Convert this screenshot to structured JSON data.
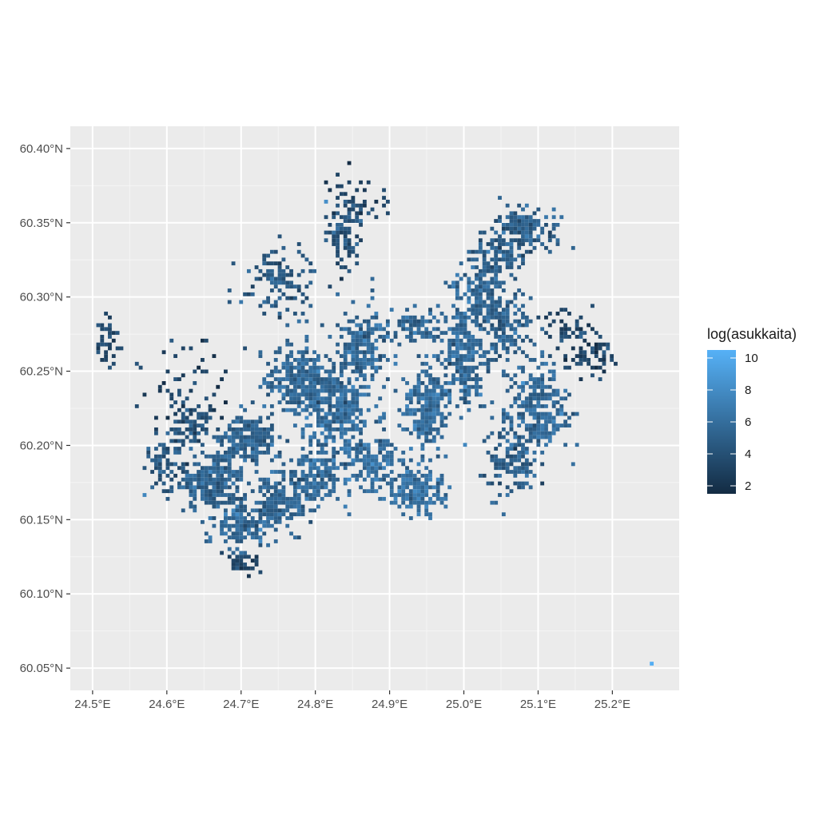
{
  "chart_data": {
    "type": "heatmap",
    "title": "",
    "xlabel": "",
    "ylabel": "",
    "xlim": [
      24.47,
      25.29
    ],
    "ylim": [
      60.035,
      60.415
    ],
    "x_ticks": [
      {
        "value": 24.5,
        "label": "24.5°E"
      },
      {
        "value": 24.6,
        "label": "24.6°E"
      },
      {
        "value": 24.7,
        "label": "24.7°E"
      },
      {
        "value": 24.8,
        "label": "24.8°E"
      },
      {
        "value": 24.9,
        "label": "24.9°E"
      },
      {
        "value": 25.0,
        "label": "25.0°E"
      },
      {
        "value": 25.1,
        "label": "25.1°E"
      },
      {
        "value": 25.2,
        "label": "25.2°E"
      }
    ],
    "y_ticks": [
      {
        "value": 60.05,
        "label": "60.05°N"
      },
      {
        "value": 60.1,
        "label": "60.10°N"
      },
      {
        "value": 60.15,
        "label": "60.15°N"
      },
      {
        "value": 60.2,
        "label": "60.20°N"
      },
      {
        "value": 60.25,
        "label": "60.25°N"
      },
      {
        "value": 60.3,
        "label": "60.30°N"
      },
      {
        "value": 60.35,
        "label": "60.35°N"
      },
      {
        "value": 60.4,
        "label": "60.40°N"
      }
    ],
    "grid": true,
    "legend": {
      "title": "log(asukkaita)",
      "position": "right",
      "range": [
        1.5,
        10.5
      ],
      "breaks": [
        2,
        4,
        6,
        8,
        10
      ],
      "low_color": "#132b43",
      "high_color": "#56b1f7"
    },
    "cell_size_deg": [
      0.0052,
      0.0026
    ],
    "clusters": [
      {
        "lon": 24.66,
        "lat": 60.175,
        "spread_lon": 0.035,
        "spread_lat": 0.014,
        "n": 260,
        "mean": 5.3
      },
      {
        "lon": 24.7,
        "lat": 60.145,
        "spread_lon": 0.03,
        "spread_lat": 0.012,
        "n": 140,
        "mean": 5.6
      },
      {
        "lon": 24.705,
        "lat": 60.122,
        "spread_lon": 0.018,
        "spread_lat": 0.006,
        "n": 45,
        "mean": 3.2
      },
      {
        "lon": 24.745,
        "lat": 60.16,
        "spread_lon": 0.03,
        "spread_lat": 0.018,
        "n": 180,
        "mean": 5.4
      },
      {
        "lon": 24.71,
        "lat": 60.205,
        "spread_lon": 0.04,
        "spread_lat": 0.014,
        "n": 200,
        "mean": 5.2
      },
      {
        "lon": 24.63,
        "lat": 60.215,
        "spread_lon": 0.025,
        "spread_lat": 0.01,
        "n": 70,
        "mean": 4.2
      },
      {
        "lon": 24.6,
        "lat": 60.185,
        "spread_lon": 0.025,
        "spread_lat": 0.015,
        "n": 80,
        "mean": 4.4
      },
      {
        "lon": 24.78,
        "lat": 60.245,
        "spread_lon": 0.04,
        "spread_lat": 0.018,
        "n": 300,
        "mean": 5.6
      },
      {
        "lon": 24.83,
        "lat": 60.22,
        "spread_lon": 0.04,
        "spread_lat": 0.025,
        "n": 300,
        "mean": 5.8
      },
      {
        "lon": 24.86,
        "lat": 60.265,
        "spread_lon": 0.03,
        "spread_lat": 0.02,
        "n": 200,
        "mean": 5.6
      },
      {
        "lon": 24.8,
        "lat": 60.18,
        "spread_lon": 0.03,
        "spread_lat": 0.015,
        "n": 160,
        "mean": 5.7
      },
      {
        "lon": 24.88,
        "lat": 60.185,
        "spread_lon": 0.03,
        "spread_lat": 0.015,
        "n": 150,
        "mean": 5.9
      },
      {
        "lon": 24.94,
        "lat": 60.17,
        "spread_lon": 0.03,
        "spread_lat": 0.012,
        "n": 170,
        "mean": 6.2
      },
      {
        "lon": 24.95,
        "lat": 60.225,
        "spread_lon": 0.025,
        "spread_lat": 0.025,
        "n": 220,
        "mean": 5.9
      },
      {
        "lon": 24.93,
        "lat": 60.28,
        "spread_lon": 0.03,
        "spread_lat": 0.012,
        "n": 80,
        "mean": 5.2
      },
      {
        "lon": 25.0,
        "lat": 60.26,
        "spread_lon": 0.025,
        "spread_lat": 0.03,
        "n": 250,
        "mean": 5.8
      },
      {
        "lon": 25.02,
        "lat": 60.3,
        "spread_lon": 0.025,
        "spread_lat": 0.02,
        "n": 150,
        "mean": 5.5
      },
      {
        "lon": 25.1,
        "lat": 60.225,
        "spread_lon": 0.035,
        "spread_lat": 0.025,
        "n": 280,
        "mean": 5.7
      },
      {
        "lon": 25.06,
        "lat": 60.19,
        "spread_lon": 0.03,
        "spread_lat": 0.02,
        "n": 130,
        "mean": 5.0
      },
      {
        "lon": 25.05,
        "lat": 60.28,
        "spread_lon": 0.035,
        "spread_lat": 0.02,
        "n": 150,
        "mean": 5.1
      },
      {
        "lon": 25.08,
        "lat": 60.345,
        "spread_lon": 0.035,
        "spread_lat": 0.012,
        "n": 160,
        "mean": 4.9
      },
      {
        "lon": 25.05,
        "lat": 60.325,
        "spread_lon": 0.03,
        "spread_lat": 0.012,
        "n": 100,
        "mean": 5.0
      },
      {
        "lon": 24.84,
        "lat": 60.34,
        "spread_lon": 0.025,
        "spread_lat": 0.02,
        "n": 90,
        "mean": 4.3
      },
      {
        "lon": 24.75,
        "lat": 60.31,
        "spread_lon": 0.04,
        "spread_lat": 0.02,
        "n": 120,
        "mean": 4.4
      },
      {
        "lon": 24.52,
        "lat": 60.27,
        "spread_lon": 0.015,
        "spread_lat": 0.012,
        "n": 40,
        "mean": 3.3
      },
      {
        "lon": 25.17,
        "lat": 60.26,
        "spread_lon": 0.025,
        "spread_lat": 0.012,
        "n": 60,
        "mean": 3.2
      },
      {
        "lon": 25.14,
        "lat": 60.28,
        "spread_lon": 0.03,
        "spread_lat": 0.01,
        "n": 40,
        "mean": 3.5
      },
      {
        "lon": 24.63,
        "lat": 60.24,
        "spread_lon": 0.05,
        "spread_lat": 0.03,
        "n": 60,
        "mean": 3.0
      },
      {
        "lon": 24.86,
        "lat": 60.37,
        "spread_lon": 0.03,
        "spread_lat": 0.015,
        "n": 40,
        "mean": 3.1
      }
    ],
    "isolated_points": [
      {
        "lon": 25.253,
        "lat": 60.053,
        "value": 10.3
      }
    ]
  }
}
